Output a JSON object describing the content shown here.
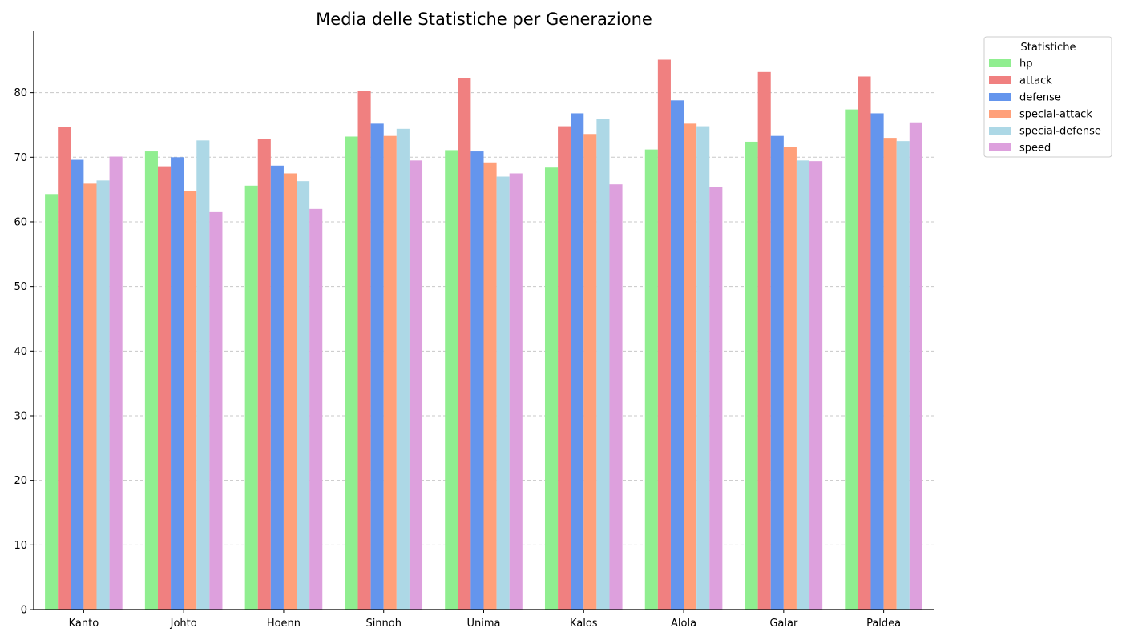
{
  "chart_data": {
    "type": "bar",
    "title": "Media delle Statistiche per Generazione",
    "xlabel": "",
    "ylabel": "",
    "categories": [
      "Kanto",
      "Johto",
      "Hoenn",
      "Sinnoh",
      "Unima",
      "Kalos",
      "Alola",
      "Galar",
      "Paldea"
    ],
    "ylim": [
      0,
      89.5
    ],
    "yticks": [
      0,
      10,
      20,
      30,
      40,
      50,
      60,
      70,
      80
    ],
    "grid": "y-dashed",
    "legend": {
      "title": "Statistiche",
      "placement": "outside-top-right"
    },
    "series": [
      {
        "name": "hp",
        "color": "#90ee90",
        "values": [
          64.3,
          70.9,
          65.6,
          73.2,
          71.1,
          68.4,
          71.2,
          72.4,
          77.4
        ]
      },
      {
        "name": "attack",
        "color": "#f08080",
        "values": [
          74.7,
          68.6,
          72.8,
          80.3,
          82.3,
          74.8,
          85.1,
          83.2,
          82.5
        ]
      },
      {
        "name": "defense",
        "color": "#6495ed",
        "values": [
          69.6,
          70.0,
          68.7,
          75.2,
          70.9,
          76.8,
          78.8,
          73.3,
          76.8
        ]
      },
      {
        "name": "special-attack",
        "color": "#ffa07a",
        "values": [
          65.9,
          64.8,
          67.5,
          73.3,
          69.2,
          73.6,
          75.2,
          71.6,
          73.0
        ]
      },
      {
        "name": "special-defense",
        "color": "#add8e6",
        "values": [
          66.4,
          72.6,
          66.3,
          74.4,
          67.0,
          75.9,
          74.8,
          69.5,
          72.5
        ]
      },
      {
        "name": "speed",
        "color": "#dda0dd",
        "values": [
          70.1,
          61.5,
          62.0,
          69.5,
          67.5,
          65.8,
          65.4,
          69.4,
          75.4
        ]
      }
    ]
  }
}
